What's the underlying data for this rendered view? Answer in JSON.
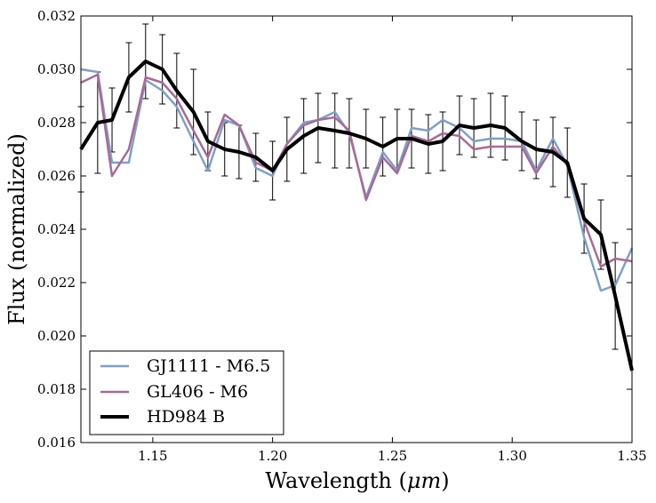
{
  "chart_data": {
    "type": "line",
    "xlabel": "Wavelength (",
    "xlabel_unit": "μm",
    "xlabel_close": ")",
    "ylabel": "Flux (normalized)",
    "xlim": [
      1.12,
      1.35
    ],
    "ylim": [
      0.016,
      0.032
    ],
    "xticks": [
      1.15,
      1.2,
      1.25,
      1.3,
      1.35
    ],
    "xtick_labels": [
      "1.15",
      "1.20",
      "1.25",
      "1.30",
      "1.35"
    ],
    "yticks": [
      0.016,
      0.018,
      0.02,
      0.022,
      0.024,
      0.026,
      0.028,
      0.03,
      0.032
    ],
    "ytick_labels": [
      "0.016",
      "0.018",
      "0.020",
      "0.022",
      "0.024",
      "0.026",
      "0.028",
      "0.030",
      "0.032"
    ],
    "legend_position": "bottom-left",
    "series": [
      {
        "name": "GJ1111 - M6.5",
        "color": "#7f9fc8",
        "x": [
          1.12,
          1.127,
          1.133,
          1.14,
          1.147,
          1.154,
          1.16,
          1.167,
          1.173,
          1.18,
          1.186,
          1.193,
          1.2,
          1.206,
          1.213,
          1.219,
          1.226,
          1.232,
          1.239,
          1.246,
          1.252,
          1.258,
          1.265,
          1.271,
          1.278,
          1.284,
          1.291,
          1.297,
          1.304,
          1.31,
          1.317,
          1.323,
          1.33,
          1.337,
          1.343,
          1.35
        ],
        "values": [
          0.03,
          0.0299,
          0.0265,
          0.0265,
          0.0296,
          0.0292,
          0.0286,
          0.0273,
          0.0262,
          0.0281,
          0.0279,
          0.0263,
          0.026,
          0.0272,
          0.028,
          0.0281,
          0.0284,
          0.0276,
          0.0252,
          0.0269,
          0.0262,
          0.0278,
          0.0277,
          0.0281,
          0.0278,
          0.0273,
          0.0274,
          0.0274,
          0.0273,
          0.0262,
          0.0274,
          0.0264,
          0.0237,
          0.0217,
          0.0219,
          0.0233
        ]
      },
      {
        "name": "GL406 - M6",
        "color": "#a86a95",
        "x": [
          1.12,
          1.127,
          1.133,
          1.14,
          1.147,
          1.154,
          1.16,
          1.167,
          1.173,
          1.18,
          1.186,
          1.193,
          1.2,
          1.206,
          1.213,
          1.219,
          1.226,
          1.232,
          1.239,
          1.246,
          1.252,
          1.258,
          1.265,
          1.271,
          1.278,
          1.284,
          1.291,
          1.297,
          1.304,
          1.31,
          1.317,
          1.323,
          1.33,
          1.337,
          1.343,
          1.35
        ],
        "values": [
          0.0295,
          0.0298,
          0.026,
          0.027,
          0.0297,
          0.0295,
          0.0289,
          0.0277,
          0.0267,
          0.0283,
          0.0279,
          0.0265,
          0.0262,
          0.0272,
          0.0279,
          0.0281,
          0.0282,
          0.0277,
          0.0251,
          0.0267,
          0.0261,
          0.0275,
          0.0273,
          0.0276,
          0.0275,
          0.027,
          0.0271,
          0.0271,
          0.0271,
          0.0261,
          0.0271,
          0.0264,
          0.0243,
          0.0226,
          0.0229,
          0.0228
        ]
      },
      {
        "name": "HD984 B",
        "color": "#000000",
        "x": [
          1.12,
          1.127,
          1.133,
          1.14,
          1.147,
          1.154,
          1.16,
          1.167,
          1.173,
          1.18,
          1.186,
          1.193,
          1.2,
          1.206,
          1.213,
          1.219,
          1.226,
          1.232,
          1.239,
          1.246,
          1.252,
          1.258,
          1.265,
          1.271,
          1.278,
          1.284,
          1.291,
          1.297,
          1.304,
          1.31,
          1.317,
          1.323,
          1.33,
          1.337,
          1.343,
          1.35
        ],
        "values": [
          0.027,
          0.028,
          0.0281,
          0.0297,
          0.0303,
          0.03,
          0.0292,
          0.0284,
          0.0273,
          0.027,
          0.0269,
          0.0267,
          0.0262,
          0.027,
          0.0275,
          0.0278,
          0.0277,
          0.0276,
          0.0274,
          0.0271,
          0.0274,
          0.0274,
          0.0272,
          0.0273,
          0.0279,
          0.0278,
          0.0279,
          0.0278,
          0.0273,
          0.027,
          0.0269,
          0.0265,
          0.0244,
          0.0238,
          0.0215,
          0.0187
        ],
        "error": [
          0.0016,
          0.0019,
          0.0012,
          0.0013,
          0.0014,
          0.0013,
          0.0014,
          0.0016,
          0.0011,
          0.001,
          0.001,
          0.0009,
          0.0011,
          0.0012,
          0.0014,
          0.0013,
          0.0014,
          0.0013,
          0.0011,
          0.0011,
          0.0011,
          0.0011,
          0.0011,
          0.0011,
          0.0011,
          0.0011,
          0.0012,
          0.0012,
          0.0011,
          0.0011,
          0.0013,
          0.0013,
          0.0013,
          0.0013,
          0.002,
          0.0
        ]
      }
    ]
  }
}
